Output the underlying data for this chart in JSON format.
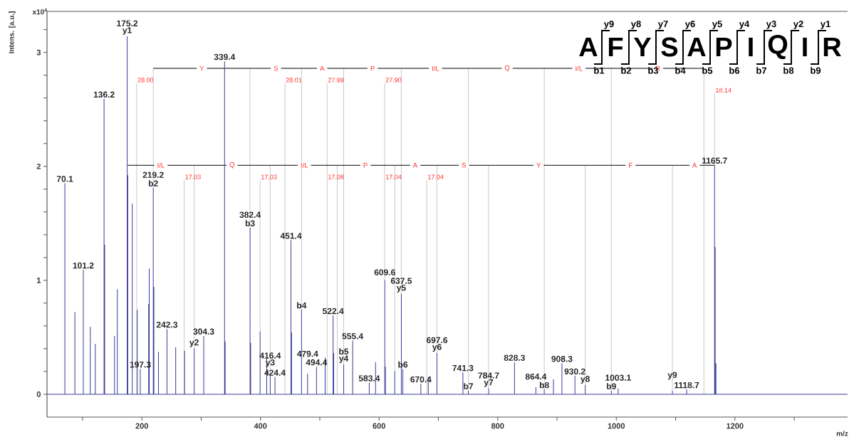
{
  "chart_data": {
    "type": "line",
    "ylabel": "Intens. [a.u.]",
    "xlabel": "m/z",
    "xlim": [
      40,
      1390
    ],
    "ylim": [
      -0.2,
      3.36
    ],
    "xticks": [
      {
        "value": 100,
        "label": null
      },
      200,
      {
        "value": 300,
        "label": null
      },
      400,
      {
        "value": 500,
        "label": null
      },
      600,
      {
        "value": 700,
        "label": null
      },
      800,
      {
        "value": 900,
        "label": null
      },
      1000,
      {
        "value": 1100,
        "label": null
      },
      1200,
      {
        "value": 1300,
        "label": null
      }
    ],
    "yticks": [
      0,
      {
        "value": 0.2,
        "label": null
      },
      {
        "value": 0.4,
        "label": null
      },
      {
        "value": 0.6,
        "label": null
      },
      {
        "value": 0.8,
        "label": null
      },
      1,
      {
        "value": 1.2,
        "label": null
      },
      {
        "value": 1.4,
        "label": null
      },
      {
        "value": 1.6,
        "label": null
      },
      {
        "value": 1.8,
        "label": null
      },
      2,
      {
        "value": 2.2,
        "label": null
      },
      {
        "value": 2.4,
        "label": null
      },
      {
        "value": 2.6,
        "label": null
      },
      {
        "value": 2.8,
        "label": null
      },
      3,
      {
        "value": 3.2,
        "label": null
      }
    ],
    "series": [
      {
        "color": "#c8c8c8",
        "x": [
          191.2,
          191.2,
          null,
          441.2,
          441.2,
          null,
          512.3,
          512.3,
          null,
          609.4,
          609.4,
          null,
          219.2,
          219.2,
          null,
          382.2,
          382.2,
          null,
          469.2,
          469.2,
          null,
          540.3,
          540.3,
          null,
          637.4,
          637.4,
          null,
          750.5,
          750.5,
          null,
          878.5,
          878.5,
          null,
          991.6,
          991.6,
          null,
          1147.7,
          1147.7,
          null,
          1165.7,
          1165.7,
          null,
          288.2,
          288.2,
          null,
          416.3,
          416.3,
          null,
          529.4,
          529.4,
          null,
          626.4,
          626.4,
          null,
          697.5,
          697.5,
          null,
          784.5,
          784.5,
          null,
          947.6,
          947.6,
          null,
          1094.6,
          1094.6,
          null,
          271.2,
          271.2,
          null,
          399.3,
          399.3,
          null,
          680.5,
          680.5
        ],
        "values": [
          0,
          2.73,
          null,
          0,
          2.73,
          null,
          0,
          2.73,
          null,
          1.0,
          2.73,
          null,
          1.81,
          2.86,
          null,
          1.46,
          2.86,
          null,
          0.74,
          2.86,
          null,
          0.26,
          2.86,
          null,
          0.88,
          2.86,
          null,
          0.03,
          2.86,
          null,
          0.04,
          2.86,
          null,
          0.03,
          2.86,
          null,
          0,
          2.86,
          null,
          2.01,
          2.64,
          null,
          0.4,
          2.01,
          null,
          0.17,
          2.01,
          null,
          0,
          2.01,
          null,
          0.2,
          2.01,
          null,
          0.36,
          2.01,
          null,
          0.05,
          2.01,
          null,
          0.08,
          2.01,
          null,
          0.03,
          2.01,
          null,
          0,
          1.88,
          null,
          0.55,
          1.88,
          null,
          0,
          1.88
        ]
      },
      {
        "color": "#000000",
        "x": [
          219.2,
          382.2,
          469.2,
          540.3,
          637.4,
          750.5,
          878.5,
          991.6,
          1147.7
        ],
        "values": [
          2.86,
          2.86,
          2.86,
          2.86,
          2.86,
          2.86,
          2.86,
          2.86,
          2.86
        ]
      },
      {
        "color": "#000000",
        "x": [
          176.2,
          288.2,
          416.3,
          529.4,
          626.4,
          697.5,
          784.5,
          947.6,
          1094.6,
          1165.7
        ],
        "values": [
          2.01,
          2.01,
          2.01,
          2.01,
          2.01,
          2.01,
          2.01,
          2.01,
          2.01,
          2.01
        ]
      },
      {
        "color": "#3b3b98",
        "x": [
          40,
          70.1,
          70.1,
          70.1,
          87,
          87,
          87,
          101.2,
          101.2,
          101.2,
          113,
          113,
          113,
          121.4,
          121.4,
          121.4,
          136.2,
          136.2,
          136.2,
          137.2,
          137.2,
          137.2,
          153.8,
          153.8,
          153.8,
          158.6,
          158.6,
          158.6,
          175.2,
          175.2,
          175.2,
          176.2,
          176.2,
          176.2,
          183.8,
          183.8,
          183.8,
          192.2,
          192.2,
          192.2,
          197.3,
          197.3,
          197.3,
          211.4,
          211.4,
          211.4,
          212.4,
          212.4,
          212.4,
          219.2,
          219.2,
          219.2,
          220.2,
          220.2,
          220.2,
          228,
          228,
          228,
          242.3,
          242.3,
          242.3,
          257,
          257,
          257,
          272,
          272,
          272,
          288.2,
          288.2,
          288.2,
          304.3,
          304.3,
          304.3,
          339.4,
          339.4,
          339.4,
          340.4,
          340.4,
          340.4,
          382.4,
          382.4,
          382.4,
          383.4,
          383.4,
          383.4,
          399.3,
          399.3,
          399.3,
          410.5,
          410.5,
          410.5,
          416.4,
          416.4,
          416.4,
          424.4,
          424.4,
          424.4,
          451.4,
          451.4,
          451.4,
          452.4,
          452.4,
          452.4,
          469.2,
          469.2,
          469.2,
          479.4,
          479.4,
          479.4,
          494.4,
          494.4,
          494.4,
          509,
          509,
          509,
          522.4,
          522.4,
          522.4,
          523.4,
          523.4,
          523.4,
          540.3,
          540.3,
          540.3,
          555.4,
          555.4,
          555.4,
          583.4,
          583.4,
          583.4,
          594,
          594,
          594,
          609.6,
          609.6,
          609.6,
          610.6,
          610.6,
          610.6,
          626.4,
          626.4,
          626.4,
          637.5,
          637.5,
          637.5,
          640,
          640,
          640,
          670.4,
          670.4,
          670.4,
          683,
          683,
          683,
          697.6,
          697.6,
          697.6,
          741.3,
          741.3,
          741.3,
          750.5,
          750.5,
          750.5,
          784.7,
          784.7,
          784.7,
          828.3,
          828.3,
          828.3,
          864.4,
          864.4,
          864.4,
          878.5,
          878.5,
          878.5,
          894,
          894,
          894,
          908.3,
          908.3,
          908.3,
          930.2,
          930.2,
          930.2,
          947.6,
          947.6,
          947.6,
          991.6,
          991.6,
          991.6,
          1003.1,
          1003.1,
          1003.1,
          1094.6,
          1094.6,
          1094.6,
          1118.7,
          1118.7,
          1118.7,
          1165.7,
          1165.7,
          1165.7,
          1166.7,
          1166.7,
          1166.7,
          1168,
          1168,
          1168,
          1390
        ],
        "values": [
          0,
          0,
          1.85,
          0,
          0,
          0.72,
          0,
          0,
          1.09,
          0,
          0,
          0.59,
          0,
          0,
          0.44,
          0,
          0,
          2.59,
          0,
          0,
          1.31,
          0,
          0,
          0.51,
          0,
          0,
          0.92,
          0,
          0,
          3.14,
          0,
          0,
          1.92,
          0,
          0,
          1.67,
          0,
          0,
          0.74,
          0,
          0,
          0.22,
          0,
          0,
          0.79,
          0,
          0,
          1.1,
          0,
          0,
          1.81,
          0,
          0,
          0.94,
          0,
          0,
          0.37,
          0,
          0,
          0.57,
          0,
          0,
          0.41,
          0,
          0,
          0.38,
          0,
          0,
          0.4,
          0,
          0,
          0.51,
          0,
          0,
          2.92,
          0,
          0,
          0.46,
          0,
          0,
          1.46,
          0,
          0,
          0.45,
          0,
          0,
          0.55,
          0,
          0,
          0.32,
          0,
          0,
          0.17,
          0,
          0,
          0.15,
          0,
          0,
          1.35,
          0,
          0,
          0.54,
          0,
          0,
          0.74,
          0,
          0,
          0.18,
          0,
          0,
          0.24,
          0,
          0,
          0.32,
          0,
          0,
          0.69,
          0,
          0,
          0.36,
          0,
          0,
          0.26,
          0,
          0,
          0.47,
          0,
          0,
          0.1,
          0,
          0,
          0.28,
          0,
          0,
          1.0,
          0,
          0,
          0.24,
          0,
          0,
          0.2,
          0,
          0,
          0.88,
          0,
          0,
          0.22,
          0,
          0,
          0.09,
          0,
          0,
          0.15,
          0,
          0,
          0.36,
          0,
          0,
          0.19,
          0,
          0,
          0.03,
          0,
          0,
          0.05,
          0,
          0,
          0.28,
          0,
          0,
          0.06,
          0,
          0,
          0.04,
          0,
          0,
          0.13,
          0,
          0,
          0.27,
          0,
          0,
          0.16,
          0,
          0,
          0.08,
          0,
          0,
          0.03,
          0,
          0,
          0.05,
          0,
          0,
          0.03,
          0,
          0,
          0.04,
          0,
          0,
          2.01,
          0,
          0,
          1.29,
          0,
          0,
          0.27,
          0,
          0
        ]
      }
    ],
    "annotations": [
      "x10$^{4}$",
      "A",
      "F",
      "Y",
      "S",
      "A",
      "P",
      "I",
      "Q",
      "I",
      "R",
      "y9",
      "y8",
      "y7",
      "y6",
      "y5",
      "y4",
      "y3",
      "y2",
      "y1",
      "b1",
      "b2",
      "b3",
      "b4",
      "b5",
      "b6",
      "b7",
      "b8",
      "b9",
      {
        "text": "Y",
        "x": 301,
        "y": 2.86
      },
      {
        "text": "S",
        "x": 426,
        "y": 2.86
      },
      {
        "text": "A",
        "x": 504,
        "y": 2.86
      },
      {
        "text": "P",
        "x": 589,
        "y": 2.86
      },
      {
        "text": "I/L",
        "x": 695,
        "y": 2.86
      },
      {
        "text": "Q",
        "x": 816,
        "y": 2.86
      },
      {
        "text": "I/L",
        "x": 937,
        "y": 2.86
      },
      {
        "text": "R",
        "x": 1070,
        "y": 2.86
      },
      {
        "text": "I/L",
        "x": 232,
        "y": 2.01
      },
      {
        "text": "Q",
        "x": 352,
        "y": 2.01
      },
      {
        "text": "I/L",
        "x": 474,
        "y": 2.01
      },
      {
        "text": "P",
        "x": 577,
        "y": 2.01
      },
      {
        "text": "A",
        "x": 661,
        "y": 2.01
      },
      {
        "text": "S",
        "x": 743,
        "y": 2.01
      },
      {
        "text": "Y",
        "x": 869,
        "y": 2.01
      },
      {
        "text": "F",
        "x": 1024,
        "y": 2.01
      },
      {
        "text": "A",
        "x": 1132,
        "y": 2.01
      },
      {
        "text": "28.00",
        "x": 191.2,
        "y": 2.73
      },
      {
        "text": "28.01",
        "x": 441.2,
        "y": 2.73
      },
      {
        "text": "27.99",
        "x": 512.3,
        "y": 2.73
      },
      {
        "text": "27.90",
        "x": 609.4,
        "y": 2.73
      },
      {
        "text": "18.14",
        "x": 1165.7,
        "y": 2.64
      },
      {
        "text": "17.03",
        "x": 271.2,
        "y": 1.88
      },
      {
        "text": "17.03",
        "x": 399.3,
        "y": 1.88
      },
      {
        "text": "17.08",
        "x": 512.3,
        "y": 1.88
      },
      {
        "text": "17.04",
        "x": 609.4,
        "y": 1.88
      },
      {
        "text": "17.04",
        "x": 680.5,
        "y": 1.88
      },
      {
        "text": "70.1",
        "x": 70.1,
        "y": 1.85
      },
      {
        "text": "101.2",
        "x": 101.2,
        "y": 1.09
      },
      {
        "text": "136.2",
        "x": 136.2,
        "y": 2.59
      },
      {
        "text": "175.2",
        "x": 175.2,
        "y": 3.14
      },
      {
        "text": "y1",
        "x": 175.2,
        "y": 3.14
      },
      {
        "text": "197.3",
        "x": 197.3,
        "y": 0.22
      },
      {
        "text": "219.2",
        "x": 219.2,
        "y": 1.81
      },
      {
        "text": "b2",
        "x": 219.2,
        "y": 1.81
      },
      {
        "text": "242.3",
        "x": 242.3,
        "y": 0.57
      },
      {
        "text": "y2",
        "x": 288.2,
        "y": 0.4
      },
      {
        "text": "304.3",
        "x": 304.3,
        "y": 0.51
      },
      {
        "text": "339.4",
        "x": 339.4,
        "y": 2.92
      },
      {
        "text": "382.4",
        "x": 382.4,
        "y": 1.46
      },
      {
        "text": "b3",
        "x": 382.4,
        "y": 1.46
      },
      {
        "text": "416.4",
        "x": 416.4,
        "y": 0.17
      },
      {
        "text": "y3",
        "x": 416.4,
        "y": 0.17
      },
      {
        "text": "424.4",
        "x": 424.4,
        "y": 0.15
      },
      {
        "text": "451.4",
        "x": 451.4,
        "y": 1.35
      },
      {
        "text": "479.4",
        "x": 479.4,
        "y": 0.18
      },
      {
        "text": "b4",
        "x": 469.2,
        "y": 0.74
      },
      {
        "text": "494.4",
        "x": 494.4,
        "y": 0.24
      },
      {
        "text": "522.4",
        "x": 522.4,
        "y": 0.69
      },
      {
        "text": "555.4",
        "x": 555.4,
        "y": 0.47
      },
      {
        "text": "b5",
        "x": 540.3,
        "y": 0.26
      },
      {
        "text": "y4",
        "x": 540.3,
        "y": 0.26
      },
      {
        "text": "583.4",
        "x": 583.4,
        "y": 0.1
      },
      {
        "text": "609.6",
        "x": 609.6,
        "y": 1.0
      },
      {
        "text": "637.5",
        "x": 637.5,
        "y": 0.88
      },
      {
        "text": "y5",
        "x": 637.5,
        "y": 0.88
      },
      {
        "text": "b6",
        "x": 640,
        "y": 0.22
      },
      {
        "text": "670.4",
        "x": 670.4,
        "y": 0.09
      },
      {
        "text": "697.6",
        "x": 697.6,
        "y": 0.36
      },
      {
        "text": "y6",
        "x": 697.6,
        "y": 0.36
      },
      {
        "text": "741.3",
        "x": 741.3,
        "y": 0.19
      },
      {
        "text": "b7",
        "x": 750.5,
        "y": 0.03
      },
      {
        "text": "784.7",
        "x": 784.7,
        "y": 0.05
      },
      {
        "text": "y7",
        "x": 784.7,
        "y": 0.05
      },
      {
        "text": "828.3",
        "x": 828.3,
        "y": 0.28
      },
      {
        "text": "864.4",
        "x": 864.4,
        "y": 0.06
      },
      {
        "text": "b8",
        "x": 878.5,
        "y": 0.04
      },
      {
        "text": "908.3",
        "x": 908.3,
        "y": 0.27
      },
      {
        "text": "930.2",
        "x": 930.2,
        "y": 0.16
      },
      {
        "text": "y8",
        "x": 947.6,
        "y": 0.08
      },
      {
        "text": "1003.1",
        "x": 1003.1,
        "y": 0.05
      },
      {
        "text": "b9",
        "x": 991.6,
        "y": 0.03
      },
      {
        "text": "y9",
        "x": 1094.6,
        "y": 0.03
      },
      {
        "text": "1118.7",
        "x": 1118.7,
        "y": 0.04
      },
      {
        "text": "1165.7",
        "x": 1165.7,
        "y": 2.01
      }
    ]
  }
}
